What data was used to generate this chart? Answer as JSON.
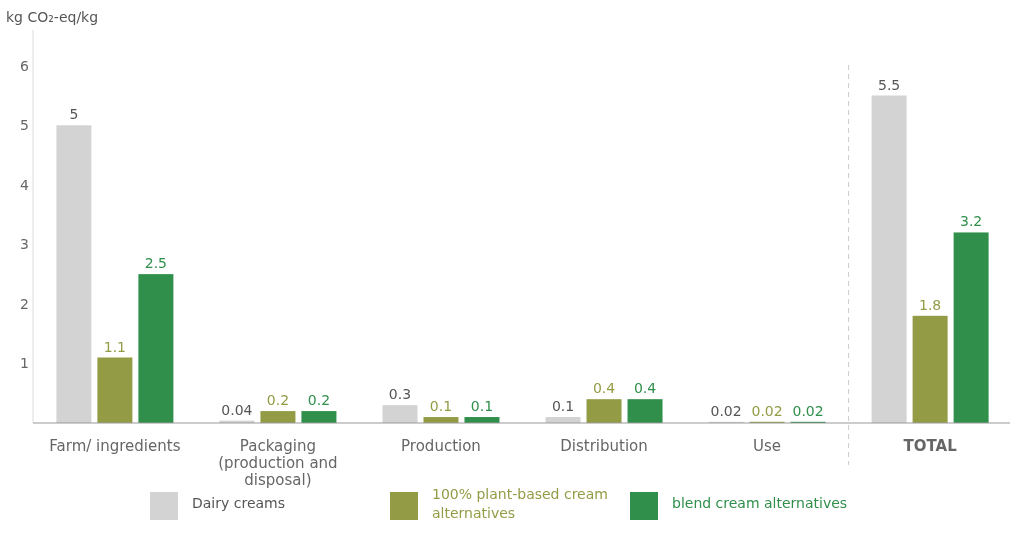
{
  "chart_data": {
    "type": "bar",
    "ylabel": "kg CO₂-eq/kg",
    "categories": [
      "Farm/ ingredients",
      "Packaging (production and disposal)",
      "Production",
      "Distribution",
      "Use",
      "TOTAL"
    ],
    "series": [
      {
        "name": "Dairy creams",
        "color": "#d3d3d3",
        "values": [
          5,
          0.04,
          0.3,
          0.1,
          0.02,
          5.5
        ]
      },
      {
        "name": "100% plant-based cream alternatives",
        "color": "#949b45",
        "values": [
          1.1,
          0.2,
          0.1,
          0.4,
          0.02,
          1.8
        ]
      },
      {
        "name": "blend cream alternatives",
        "color": "#2f8f4b",
        "values": [
          2.5,
          0.2,
          0.1,
          0.4,
          0.02,
          3.2
        ]
      }
    ],
    "ylim": [
      0,
      6.6
    ],
    "yticks": [
      1,
      2,
      3,
      4,
      5,
      6
    ],
    "grid": false,
    "legend": "bottom",
    "data_labels": true
  }
}
